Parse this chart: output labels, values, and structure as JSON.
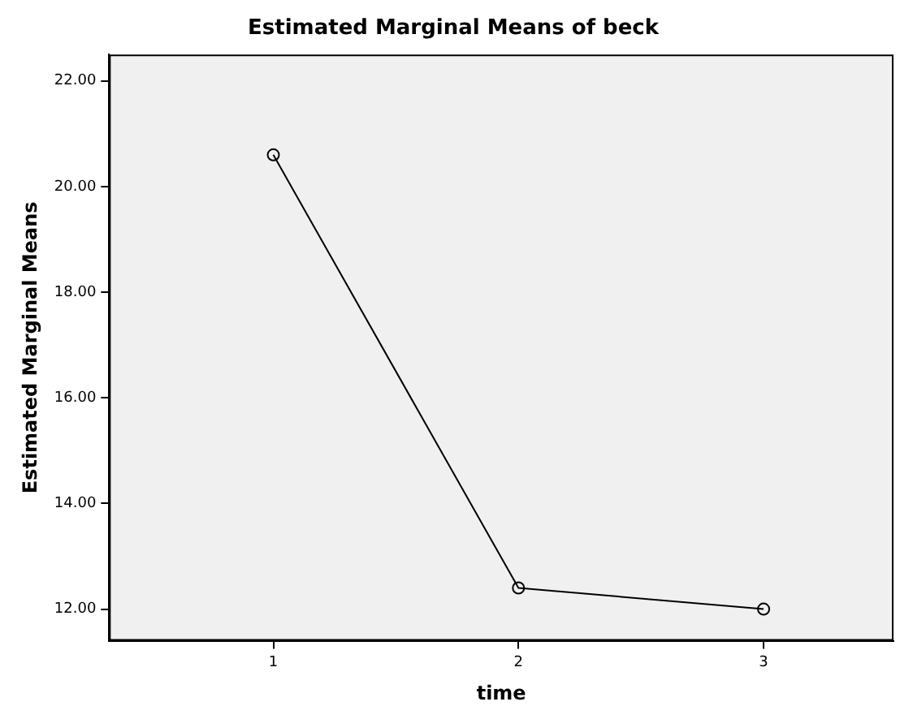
{
  "chart_data": {
    "type": "line",
    "title": "Estimated Marginal Means of beck",
    "xlabel": "time",
    "ylabel": "Estimated Marginal Means",
    "x": [
      1,
      2,
      3
    ],
    "series": [
      {
        "color": "#000000",
        "values": [
          20.6,
          12.4,
          12.0
        ]
      }
    ],
    "xlim": [
      0.33,
      3.53
    ],
    "xticks": [
      1,
      2,
      3
    ],
    "ylim": [
      11.4,
      22.5
    ],
    "yticks": [
      {
        "value": 12,
        "label": "12.00"
      },
      {
        "value": 14,
        "label": "14.00"
      },
      {
        "value": 16,
        "label": "16.00"
      },
      {
        "value": 18,
        "label": "18.00"
      },
      {
        "value": 20,
        "label": "20.00"
      },
      {
        "value": 22,
        "label": "22.00"
      }
    ],
    "grid": false,
    "legend": false,
    "marker": "circle",
    "line_style": "solid"
  }
}
